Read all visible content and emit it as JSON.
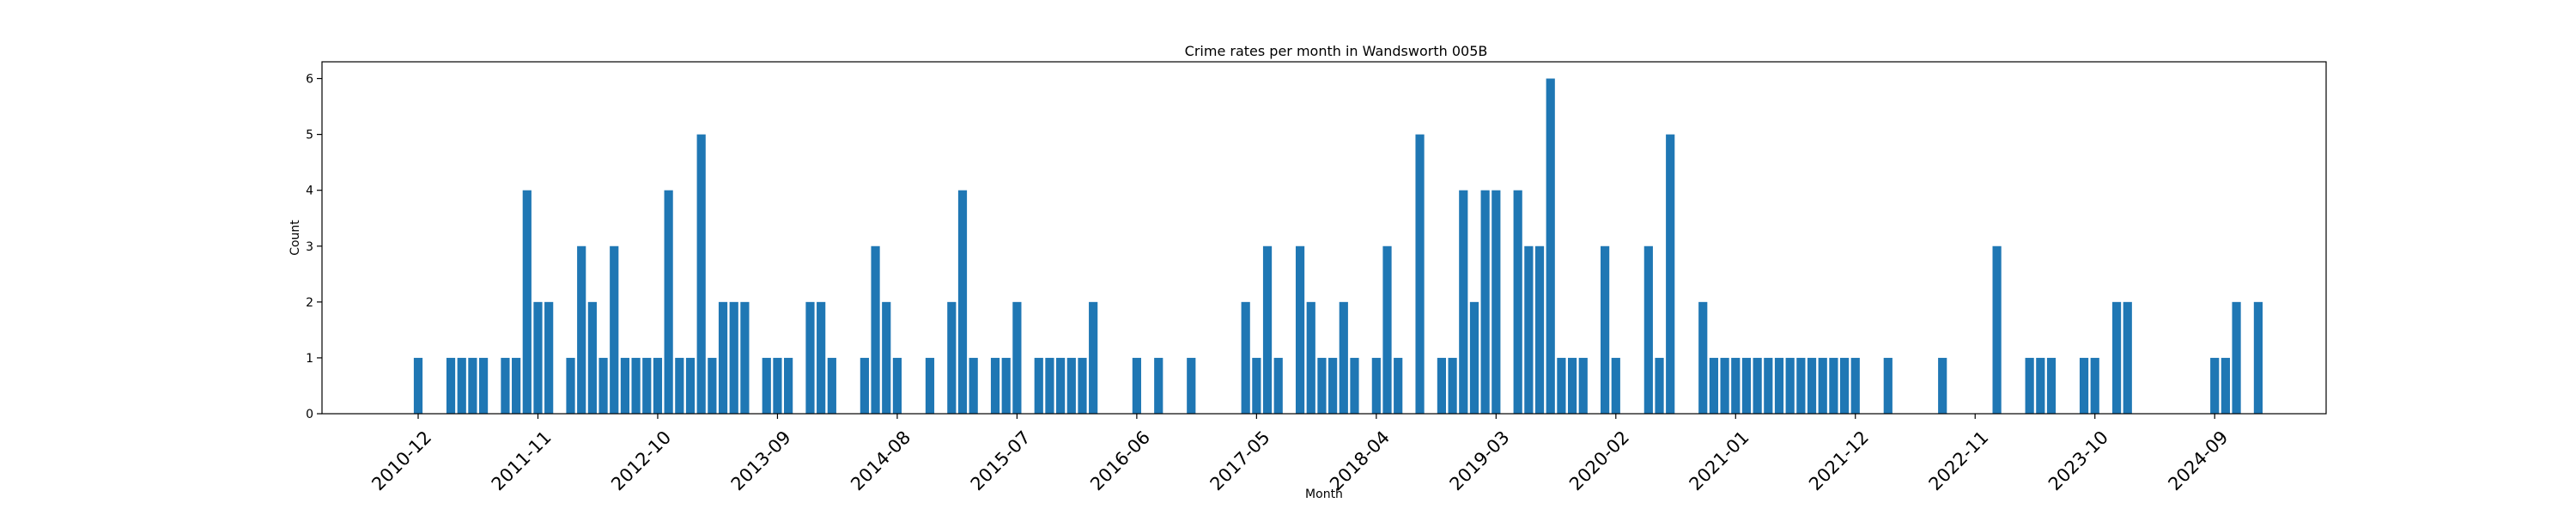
{
  "chart_data": {
    "type": "bar",
    "title": "Crime rates per month in Wandsworth 005B",
    "xlabel": "Month",
    "ylabel": "Count",
    "ylim": [
      0,
      6.3
    ],
    "yticks": [
      0,
      1,
      2,
      3,
      4,
      5,
      6
    ],
    "xticks": [
      "2010-12",
      "2011-11",
      "2012-10",
      "2013-09",
      "2014-08",
      "2015-07",
      "2016-06",
      "2017-05",
      "2018-04",
      "2019-03",
      "2020-02",
      "2021-01",
      "2021-12",
      "2022-11",
      "2023-10",
      "2024-09"
    ],
    "color": "#1f77b4",
    "grid": false,
    "series": [
      {
        "x": [
          "2010-12",
          "2011-03",
          "2011-04",
          "2011-05",
          "2011-06",
          "2011-08",
          "2011-09",
          "2011-10",
          "2011-11",
          "2011-12",
          "2012-02",
          "2012-03",
          "2012-04",
          "2012-05",
          "2012-06",
          "2012-07",
          "2012-08",
          "2012-09",
          "2012-10",
          "2012-11",
          "2012-12",
          "2013-01",
          "2013-02",
          "2013-03",
          "2013-04",
          "2013-05",
          "2013-06",
          "2013-08",
          "2013-09",
          "2013-10",
          "2013-12",
          "2014-01",
          "2014-02",
          "2014-05",
          "2014-06",
          "2014-07",
          "2014-08",
          "2014-11",
          "2015-01",
          "2015-02",
          "2015-03",
          "2015-05",
          "2015-06",
          "2015-07",
          "2015-09",
          "2015-10",
          "2015-11",
          "2015-12",
          "2016-01",
          "2016-02",
          "2016-06",
          "2016-08",
          "2016-11",
          "2017-04",
          "2017-05",
          "2017-06",
          "2017-07",
          "2017-09",
          "2017-10",
          "2017-11",
          "2017-12",
          "2018-01",
          "2018-02",
          "2018-04",
          "2018-05",
          "2018-06",
          "2018-08",
          "2018-10",
          "2018-11",
          "2018-12",
          "2019-01",
          "2019-02",
          "2019-03",
          "2019-05",
          "2019-06",
          "2019-07",
          "2019-08",
          "2019-09",
          "2019-10",
          "2019-11",
          "2020-01",
          "2020-02",
          "2020-05",
          "2020-06",
          "2020-07",
          "2020-10",
          "2020-11",
          "2020-12",
          "2021-01",
          "2021-02",
          "2021-03",
          "2021-04",
          "2021-05",
          "2021-06",
          "2021-07",
          "2021-08",
          "2021-09",
          "2021-10",
          "2021-11",
          "2021-12",
          "2022-03",
          "2022-08",
          "2023-01",
          "2023-04",
          "2023-05",
          "2023-06",
          "2023-09",
          "2023-10",
          "2023-12",
          "2024-01",
          "2024-09",
          "2024-10",
          "2024-11",
          "2025-01"
        ],
        "values": [
          1,
          1,
          1,
          1,
          1,
          1,
          1,
          4,
          2,
          2,
          1,
          3,
          2,
          1,
          3,
          1,
          1,
          1,
          1,
          4,
          1,
          1,
          5,
          1,
          2,
          2,
          2,
          1,
          1,
          1,
          2,
          2,
          1,
          1,
          3,
          2,
          1,
          1,
          2,
          4,
          1,
          1,
          1,
          2,
          1,
          1,
          1,
          1,
          1,
          2,
          1,
          1,
          1,
          2,
          1,
          3,
          1,
          3,
          2,
          1,
          1,
          2,
          1,
          1,
          3,
          1,
          5,
          1,
          1,
          4,
          2,
          4,
          4,
          4,
          3,
          3,
          6,
          1,
          1,
          1,
          3,
          1,
          3,
          1,
          5,
          2,
          1,
          1,
          1,
          1,
          1,
          1,
          1,
          1,
          1,
          1,
          1,
          1,
          1,
          1,
          1,
          1,
          3,
          1,
          1,
          1,
          1,
          1,
          2,
          2,
          1,
          1,
          2,
          2
        ]
      }
    ]
  }
}
